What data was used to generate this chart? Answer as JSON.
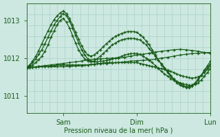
{
  "bg_color": "#cce8e0",
  "grid_color": "#aad0c8",
  "line_color": "#1a5c1a",
  "ylabel": "Pression niveau de la mer( hPa )",
  "xtick_labels": [
    "",
    "Sam",
    "",
    "Dim",
    "",
    "Lun"
  ],
  "ytick_positions": [
    1011,
    1012,
    1013
  ],
  "ylim": [
    1010.55,
    1013.45
  ],
  "xlim": [
    0,
    240
  ],
  "x_sam": 48,
  "x_dim": 144,
  "x_lun": 240,
  "series": [
    {
      "x": [
        0,
        8,
        16,
        24,
        32,
        40,
        48,
        56,
        64,
        72,
        80,
        88,
        96,
        104,
        112,
        120,
        128,
        136,
        144,
        152,
        160,
        168,
        176,
        184,
        192,
        200,
        208,
        216,
        224,
        232,
        240
      ],
      "y": [
        1011.75,
        1011.76,
        1011.77,
        1011.77,
        1011.77,
        1011.77,
        1011.77,
        1011.78,
        1011.79,
        1011.8,
        1011.82,
        1011.84,
        1011.85,
        1011.86,
        1011.87,
        1011.88,
        1011.9,
        1011.92,
        1011.93,
        1011.94,
        1011.95,
        1011.97,
        1012.0,
        1012.02,
        1012.05,
        1012.08,
        1012.1,
        1012.12,
        1012.13,
        1012.14,
        1012.15
      ]
    },
    {
      "x": [
        0,
        8,
        16,
        24,
        32,
        40,
        48,
        56,
        64,
        72,
        80,
        88,
        96,
        104,
        112,
        120,
        128,
        136,
        144,
        152,
        160,
        168,
        176,
        184,
        192,
        200,
        208,
        216,
        224,
        232,
        240
      ],
      "y": [
        1011.75,
        1011.76,
        1011.78,
        1011.8,
        1011.82,
        1011.84,
        1011.86,
        1011.88,
        1011.9,
        1011.92,
        1011.95,
        1011.97,
        1011.98,
        1011.99,
        1012.0,
        1012.0,
        1012.02,
        1012.05,
        1012.08,
        1012.1,
        1012.13,
        1012.16,
        1012.18,
        1012.2,
        1012.22,
        1012.23,
        1012.22,
        1012.2,
        1012.18,
        1012.15,
        1012.12
      ]
    },
    {
      "x": [
        0,
        4,
        8,
        12,
        16,
        20,
        24,
        28,
        32,
        36,
        40,
        44,
        48,
        52,
        56,
        60,
        64,
        68,
        72,
        76,
        80,
        84,
        88,
        92,
        96,
        100,
        104,
        108,
        112,
        116,
        120,
        124,
        128,
        132,
        136,
        140,
        144,
        148,
        152,
        156,
        160,
        164,
        168,
        172,
        176,
        180,
        184,
        188,
        192,
        196,
        200,
        204,
        208,
        212,
        216,
        220,
        224,
        228,
        232,
        236,
        240
      ],
      "y": [
        1011.75,
        1011.75,
        1011.76,
        1011.76,
        1011.77,
        1011.77,
        1011.78,
        1011.78,
        1011.79,
        1011.8,
        1011.81,
        1011.82,
        1011.82,
        1011.82,
        1011.82,
        1011.82,
        1011.82,
        1011.82,
        1011.82,
        1011.82,
        1011.82,
        1011.83,
        1011.84,
        1011.85,
        1011.86,
        1011.87,
        1011.88,
        1011.88,
        1011.88,
        1011.88,
        1011.88,
        1011.88,
        1011.88,
        1011.88,
        1011.88,
        1011.88,
        1011.88,
        1011.86,
        1011.84,
        1011.82,
        1011.8,
        1011.78,
        1011.76,
        1011.74,
        1011.72,
        1011.7,
        1011.68,
        1011.65,
        1011.62,
        1011.58,
        1011.55,
        1011.52,
        1011.5,
        1011.48,
        1011.47,
        1011.48,
        1011.5,
        1011.55,
        1011.62,
        1011.7,
        1011.8
      ]
    },
    {
      "x": [
        0,
        4,
        8,
        12,
        16,
        20,
        24,
        28,
        32,
        36,
        40,
        44,
        48,
        52,
        56,
        60,
        64,
        68,
        72,
        76,
        80,
        84,
        88,
        92,
        96,
        100,
        104,
        108,
        112,
        116,
        120,
        124,
        128,
        132,
        136,
        140,
        144,
        148,
        152,
        156,
        160,
        164,
        168,
        172,
        176,
        180,
        184,
        188,
        192,
        196,
        200,
        204,
        208,
        212,
        216,
        220,
        224,
        228,
        232,
        236,
        240
      ],
      "y": [
        1011.75,
        1011.78,
        1011.82,
        1011.88,
        1011.96,
        1012.05,
        1012.18,
        1012.35,
        1012.55,
        1012.72,
        1012.88,
        1013.0,
        1013.05,
        1012.95,
        1012.8,
        1012.6,
        1012.4,
        1012.22,
        1012.08,
        1011.98,
        1011.92,
        1011.9,
        1011.9,
        1011.9,
        1011.92,
        1011.92,
        1011.94,
        1011.96,
        1011.98,
        1012.0,
        1012.02,
        1012.05,
        1012.08,
        1012.1,
        1012.12,
        1012.12,
        1012.12,
        1012.1,
        1012.05,
        1012.0,
        1011.95,
        1011.88,
        1011.8,
        1011.72,
        1011.65,
        1011.58,
        1011.52,
        1011.46,
        1011.42,
        1011.38,
        1011.35,
        1011.32,
        1011.3,
        1011.28,
        1011.28,
        1011.3,
        1011.35,
        1011.42,
        1011.52,
        1011.62,
        1011.72
      ]
    },
    {
      "x": [
        0,
        4,
        8,
        12,
        16,
        20,
        24,
        28,
        32,
        36,
        40,
        44,
        48,
        52,
        56,
        60,
        64,
        68,
        72,
        76,
        80,
        84,
        88,
        92,
        96,
        100,
        104,
        108,
        112,
        116,
        120,
        124,
        128,
        132,
        136,
        140,
        144,
        148,
        152,
        156,
        160,
        164,
        168,
        172,
        176,
        180,
        184,
        188,
        192,
        196,
        200,
        204,
        208,
        212,
        216,
        220,
        224,
        228,
        232,
        236,
        240
      ],
      "y": [
        1011.75,
        1011.8,
        1011.88,
        1011.98,
        1012.1,
        1012.22,
        1012.38,
        1012.55,
        1012.72,
        1012.88,
        1013.0,
        1013.1,
        1013.18,
        1013.12,
        1012.98,
        1012.8,
        1012.6,
        1012.4,
        1012.22,
        1012.08,
        1011.98,
        1011.92,
        1011.92,
        1011.98,
        1012.05,
        1012.12,
        1012.2,
        1012.28,
        1012.35,
        1012.4,
        1012.45,
        1012.48,
        1012.5,
        1012.52,
        1012.52,
        1012.52,
        1012.5,
        1012.48,
        1012.42,
        1012.35,
        1012.25,
        1012.15,
        1012.05,
        1011.95,
        1011.85,
        1011.75,
        1011.65,
        1011.55,
        1011.45,
        1011.38,
        1011.32,
        1011.28,
        1011.25,
        1011.25,
        1011.28,
        1011.35,
        1011.45,
        1011.55,
        1011.65,
        1011.75,
        1011.85
      ]
    },
    {
      "x": [
        0,
        4,
        8,
        12,
        16,
        20,
        24,
        28,
        32,
        36,
        40,
        44,
        48,
        52,
        56,
        60,
        64,
        68,
        72,
        76,
        80,
        84,
        88,
        92,
        96,
        100,
        104,
        108,
        112,
        116,
        120,
        124,
        128,
        132,
        136,
        140,
        144,
        148,
        152,
        156,
        160,
        164,
        168,
        172,
        176,
        180,
        184,
        188,
        192,
        196,
        200,
        204,
        208,
        212,
        216,
        220,
        224,
        228,
        232,
        236,
        240
      ],
      "y": [
        1011.75,
        1011.82,
        1011.92,
        1012.05,
        1012.2,
        1012.38,
        1012.55,
        1012.72,
        1012.88,
        1013.02,
        1013.12,
        1013.2,
        1013.25,
        1013.18,
        1013.05,
        1012.88,
        1012.68,
        1012.5,
        1012.32,
        1012.18,
        1012.08,
        1012.05,
        1012.08,
        1012.15,
        1012.22,
        1012.3,
        1012.38,
        1012.45,
        1012.52,
        1012.58,
        1012.62,
        1012.65,
        1012.68,
        1012.7,
        1012.7,
        1012.7,
        1012.68,
        1012.62,
        1012.55,
        1012.45,
        1012.35,
        1012.22,
        1012.08,
        1011.95,
        1011.82,
        1011.72,
        1011.62,
        1011.52,
        1011.42,
        1011.35,
        1011.28,
        1011.25,
        1011.22,
        1011.22,
        1011.25,
        1011.32,
        1011.42,
        1011.55,
        1011.68,
        1011.8,
        1011.92
      ]
    }
  ]
}
